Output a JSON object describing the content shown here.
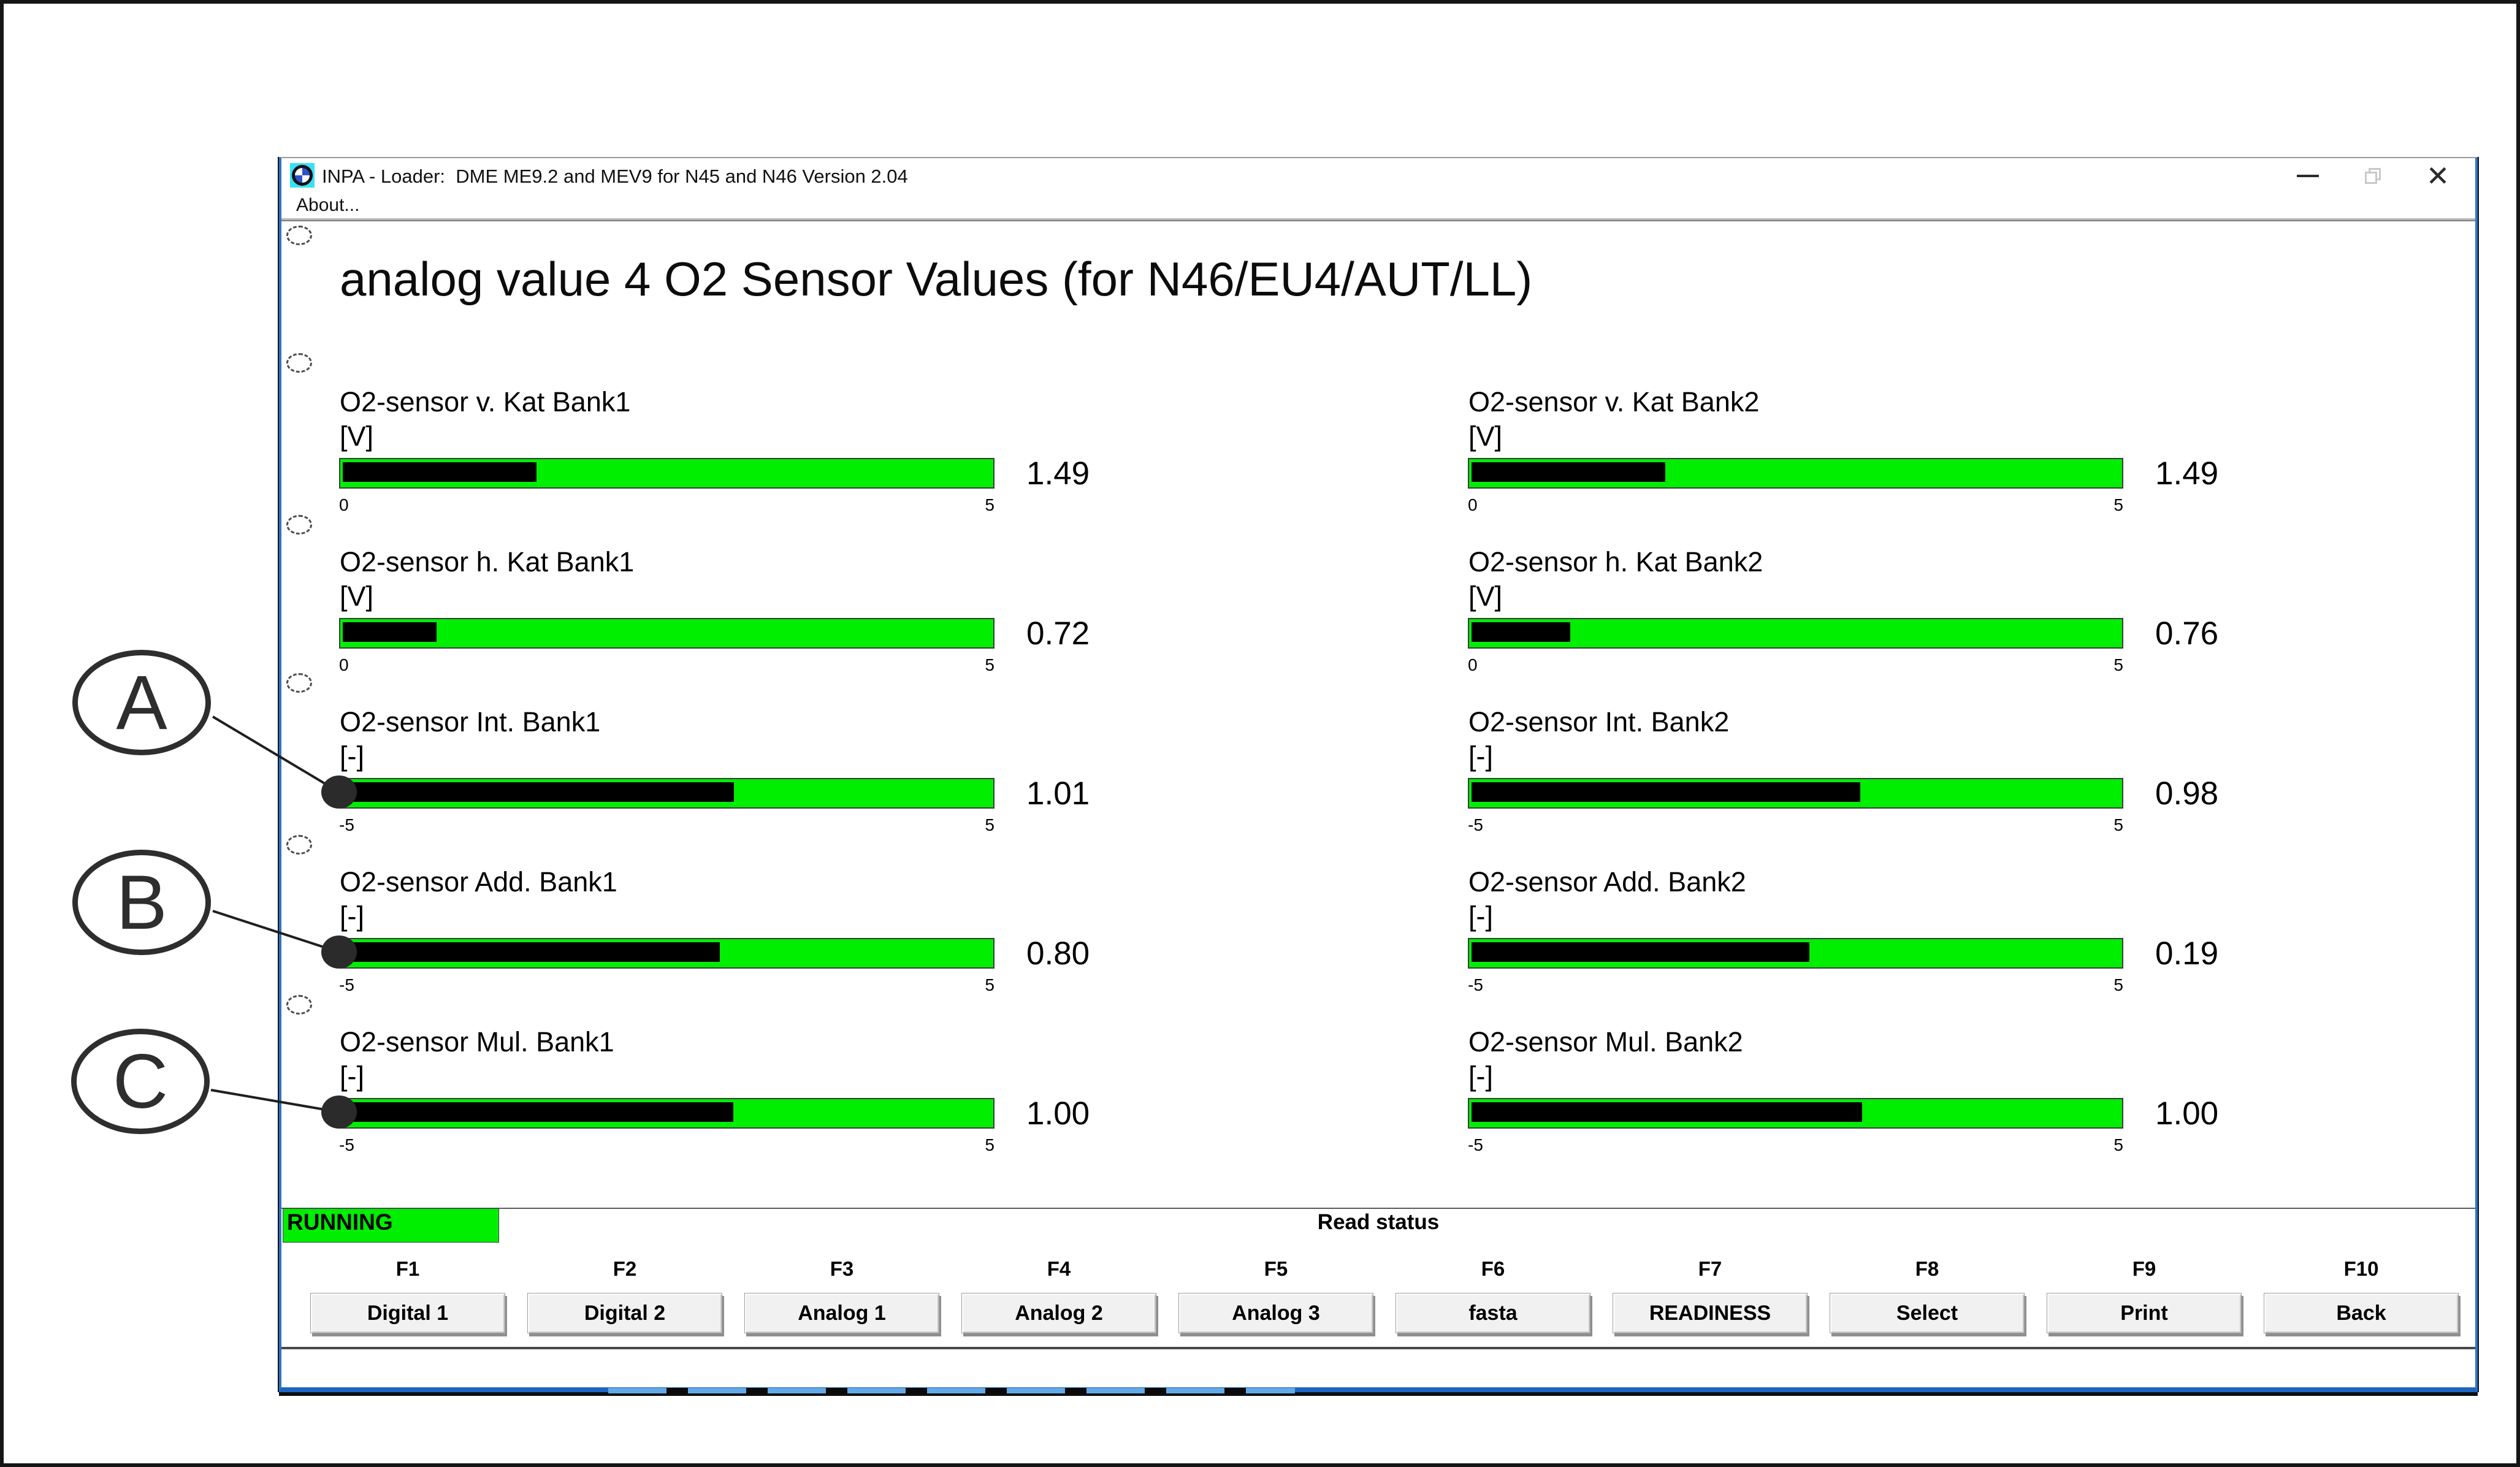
{
  "window": {
    "icon": "bmw-roundel-icon",
    "title": "INPA - Loader:  DME ME9.2 and MEV9 for N45 and N46 Version 2.04",
    "menu_about": "About...",
    "controls": {
      "minimize": "minimize",
      "restore": "restore",
      "close": "✕"
    }
  },
  "heading": "analog value 4 O2 Sensor Values (for N46/EU4/AUT/LL)",
  "colors": {
    "gauge_green": "#00ee00",
    "gauge_fill": "#000000",
    "running_bg": "#00ee00",
    "window_border": "#2e75c8",
    "taskbar_dash": "#63a9e6"
  },
  "sensors": [
    {
      "label": "O2-sensor v. Kat Bank1",
      "unit": "[V]",
      "value": 1.49,
      "display": "1.49",
      "min": 0,
      "max": 5,
      "min_label": "0",
      "max_label": "5"
    },
    {
      "label": "O2-sensor v. Kat Bank2",
      "unit": "[V]",
      "value": 1.49,
      "display": "1.49",
      "min": 0,
      "max": 5,
      "min_label": "0",
      "max_label": "5"
    },
    {
      "label": "O2-sensor h. Kat Bank1",
      "unit": "[V]",
      "value": 0.72,
      "display": "0.72",
      "min": 0,
      "max": 5,
      "min_label": "0",
      "max_label": "5"
    },
    {
      "label": "O2-sensor h. Kat Bank2",
      "unit": "[V]",
      "value": 0.76,
      "display": "0.76",
      "min": 0,
      "max": 5,
      "min_label": "0",
      "max_label": "5"
    },
    {
      "label": "O2-sensor Int. Bank1",
      "unit": "[-]",
      "value": 1.01,
      "display": "1.01",
      "min": -5,
      "max": 5,
      "min_label": "-5",
      "max_label": "5",
      "marker": "A"
    },
    {
      "label": "O2-sensor Int. Bank2",
      "unit": "[-]",
      "value": 0.98,
      "display": "0.98",
      "min": -5,
      "max": 5,
      "min_label": "-5",
      "max_label": "5"
    },
    {
      "label": "O2-sensor Add. Bank1",
      "unit": "[-]",
      "value": 0.8,
      "display": "0.80",
      "min": -5,
      "max": 5,
      "min_label": "-5",
      "max_label": "5",
      "marker": "B"
    },
    {
      "label": "O2-sensor Add. Bank2",
      "unit": "[-]",
      "value": 0.19,
      "display": "0.19",
      "min": -5,
      "max": 5,
      "min_label": "-5",
      "max_label": "5"
    },
    {
      "label": "O2-sensor Mul. Bank1",
      "unit": "[-]",
      "value": 1.0,
      "display": "1.00",
      "min": -5,
      "max": 5,
      "min_label": "-5",
      "max_label": "5",
      "marker": "C"
    },
    {
      "label": "O2-sensor Mul. Bank2",
      "unit": "[-]",
      "value": 1.0,
      "display": "1.00",
      "min": -5,
      "max": 5,
      "min_label": "-5",
      "max_label": "5"
    }
  ],
  "status": {
    "running": "RUNNING",
    "read_status": "Read status"
  },
  "fkeys": [
    {
      "key": "F1",
      "label": "Digital 1"
    },
    {
      "key": "F2",
      "label": "Digital 2"
    },
    {
      "key": "F3",
      "label": "Analog 1"
    },
    {
      "key": "F4",
      "label": "Analog 2"
    },
    {
      "key": "F5",
      "label": "Analog 3"
    },
    {
      "key": "F6",
      "label": "fasta"
    },
    {
      "key": "F7",
      "label": "READINESS"
    },
    {
      "key": "F8",
      "label": "Select"
    },
    {
      "key": "F9",
      "label": "Print"
    },
    {
      "key": "F10",
      "label": "Back"
    }
  ],
  "annotations": [
    {
      "letter": "A",
      "target": "O2-sensor Int. Bank1"
    },
    {
      "letter": "B",
      "target": "O2-sensor Add. Bank1"
    },
    {
      "letter": "C",
      "target": "O2-sensor Mul. Bank1"
    }
  ],
  "chart_data": {
    "type": "bar",
    "categories": [
      "O2-sensor v. Kat Bank1",
      "O2-sensor v. Kat Bank2",
      "O2-sensor h. Kat Bank1",
      "O2-sensor h. Kat Bank2",
      "O2-sensor Int. Bank1",
      "O2-sensor Int. Bank2",
      "O2-sensor Add. Bank1",
      "O2-sensor Add. Bank2",
      "O2-sensor Mul. Bank1",
      "O2-sensor Mul. Bank2"
    ],
    "values": [
      1.49,
      1.49,
      0.72,
      0.76,
      1.01,
      0.98,
      0.8,
      0.19,
      1.0,
      1.0
    ],
    "title": "analog value 4 O2 Sensor Values (for N46/EU4/AUT/LL)",
    "xlabel": "",
    "ylabel": "",
    "axis_ranges": {
      "voltage_gauges": [
        0,
        5
      ],
      "dimensionless_gauges": [
        -5,
        5
      ]
    }
  }
}
